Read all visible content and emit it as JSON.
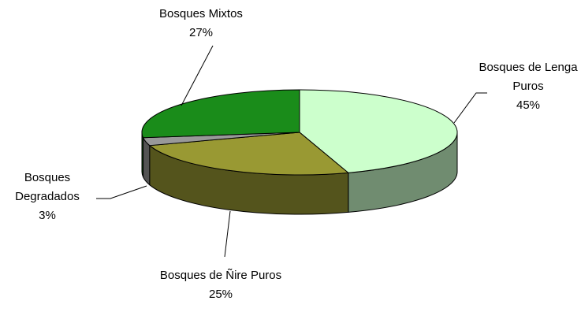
{
  "chart_data": {
    "type": "pie",
    "categories": [
      "Bosques de Lenga Puros",
      "Bosques de Ñire Puros",
      "Bosques Degradados",
      "Bosques Mixtos"
    ],
    "values": [
      45,
      25,
      3,
      27
    ],
    "value_labels": [
      "45%",
      "25%",
      "3%",
      "27%"
    ],
    "colors": [
      "#ccffcc",
      "#999933",
      "#999999",
      "#1a8c1a"
    ]
  }
}
